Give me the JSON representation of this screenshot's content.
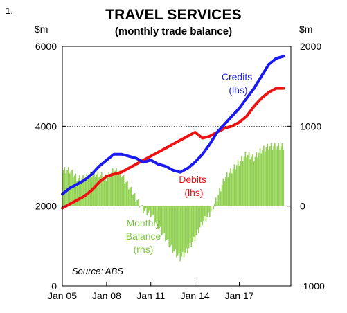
{
  "figure_number": "1.",
  "chart_data": {
    "type": "line",
    "title": "TRAVEL SERVICES",
    "subtitle": "(monthly trade balance)",
    "left_axis": {
      "unit": "$m",
      "range": [
        0,
        6000
      ],
      "ticks": [
        "0",
        "2000",
        "4000",
        "6000"
      ],
      "tick_values": [
        0,
        2000,
        4000,
        6000
      ]
    },
    "right_axis": {
      "unit": "$m",
      "range": [
        -1000,
        2000
      ],
      "ticks": [
        "-1000",
        "0",
        "1000",
        "2000"
      ],
      "tick_values": [
        -1000,
        0,
        1000,
        2000
      ]
    },
    "x_axis": {
      "range": [
        2005.0,
        2020.5
      ],
      "ticks": [
        "Jan 05",
        "Jan 08",
        "Jan 11",
        "Jan 14",
        "Jan 17"
      ],
      "tick_values": [
        2005,
        2008,
        2011,
        2014,
        2017
      ]
    },
    "grid": {
      "horizontal_dotted_at_left": [
        4000
      ],
      "vertical": false
    },
    "source": "Source: ABS",
    "colors": {
      "credits": "#1a1aee",
      "debits": "#ee1111",
      "balance": "#8fd14f"
    },
    "series": [
      {
        "name": "Credits",
        "label": "Credits",
        "label_sub": "(lhs)",
        "axis": "left",
        "kind": "line",
        "x": [
          2005.0,
          2005.5,
          2006.0,
          2006.5,
          2007.0,
          2007.5,
          2008.0,
          2008.5,
          2009.0,
          2009.5,
          2010.0,
          2010.5,
          2011.0,
          2011.5,
          2012.0,
          2012.5,
          2013.0,
          2013.5,
          2014.0,
          2014.5,
          2015.0,
          2015.5,
          2016.0,
          2016.5,
          2017.0,
          2017.5,
          2018.0,
          2018.5,
          2019.0,
          2019.5,
          2020.0
        ],
        "values": [
          2300,
          2450,
          2550,
          2650,
          2800,
          3000,
          3150,
          3300,
          3300,
          3250,
          3200,
          3100,
          3150,
          3050,
          3000,
          2900,
          2850,
          2950,
          3100,
          3300,
          3550,
          3850,
          4050,
          4250,
          4450,
          4700,
          4950,
          5250,
          5550,
          5700,
          5750
        ]
      },
      {
        "name": "Debits",
        "label": "Debits",
        "label_sub": "(lhs)",
        "axis": "left",
        "kind": "line",
        "x": [
          2005.0,
          2005.5,
          2006.0,
          2006.5,
          2007.0,
          2007.5,
          2008.0,
          2008.5,
          2009.0,
          2009.5,
          2010.0,
          2010.5,
          2011.0,
          2011.5,
          2012.0,
          2012.5,
          2013.0,
          2013.5,
          2014.0,
          2014.5,
          2015.0,
          2015.5,
          2016.0,
          2016.5,
          2017.0,
          2017.5,
          2018.0,
          2018.5,
          2019.0,
          2019.5,
          2020.0
        ],
        "values": [
          1950,
          2050,
          2150,
          2250,
          2400,
          2600,
          2750,
          2800,
          2850,
          2950,
          3050,
          3150,
          3250,
          3350,
          3450,
          3550,
          3650,
          3750,
          3850,
          3700,
          3750,
          3850,
          3950,
          4000,
          4100,
          4250,
          4500,
          4700,
          4850,
          4950,
          4950
        ]
      },
      {
        "name": "Monthly Balance",
        "label": "Monthly\nBalance\n(rhs)",
        "axis": "right",
        "kind": "bar",
        "x": [
          2005.0,
          2005.5,
          2006.0,
          2006.5,
          2007.0,
          2007.5,
          2008.0,
          2008.5,
          2009.0,
          2009.5,
          2010.0,
          2010.5,
          2011.0,
          2011.5,
          2012.0,
          2012.5,
          2013.0,
          2013.5,
          2014.0,
          2014.5,
          2015.0,
          2015.5,
          2016.0,
          2016.5,
          2017.0,
          2017.5,
          2018.0,
          2018.5,
          2019.0,
          2019.5,
          2020.0
        ],
        "values": [
          450,
          450,
          350,
          350,
          400,
          400,
          350,
          450,
          400,
          250,
          100,
          -50,
          -100,
          -250,
          -400,
          -550,
          -650,
          -550,
          -400,
          -200,
          -100,
          100,
          350,
          450,
          550,
          650,
          600,
          700,
          750,
          750,
          750
        ]
      }
    ]
  }
}
